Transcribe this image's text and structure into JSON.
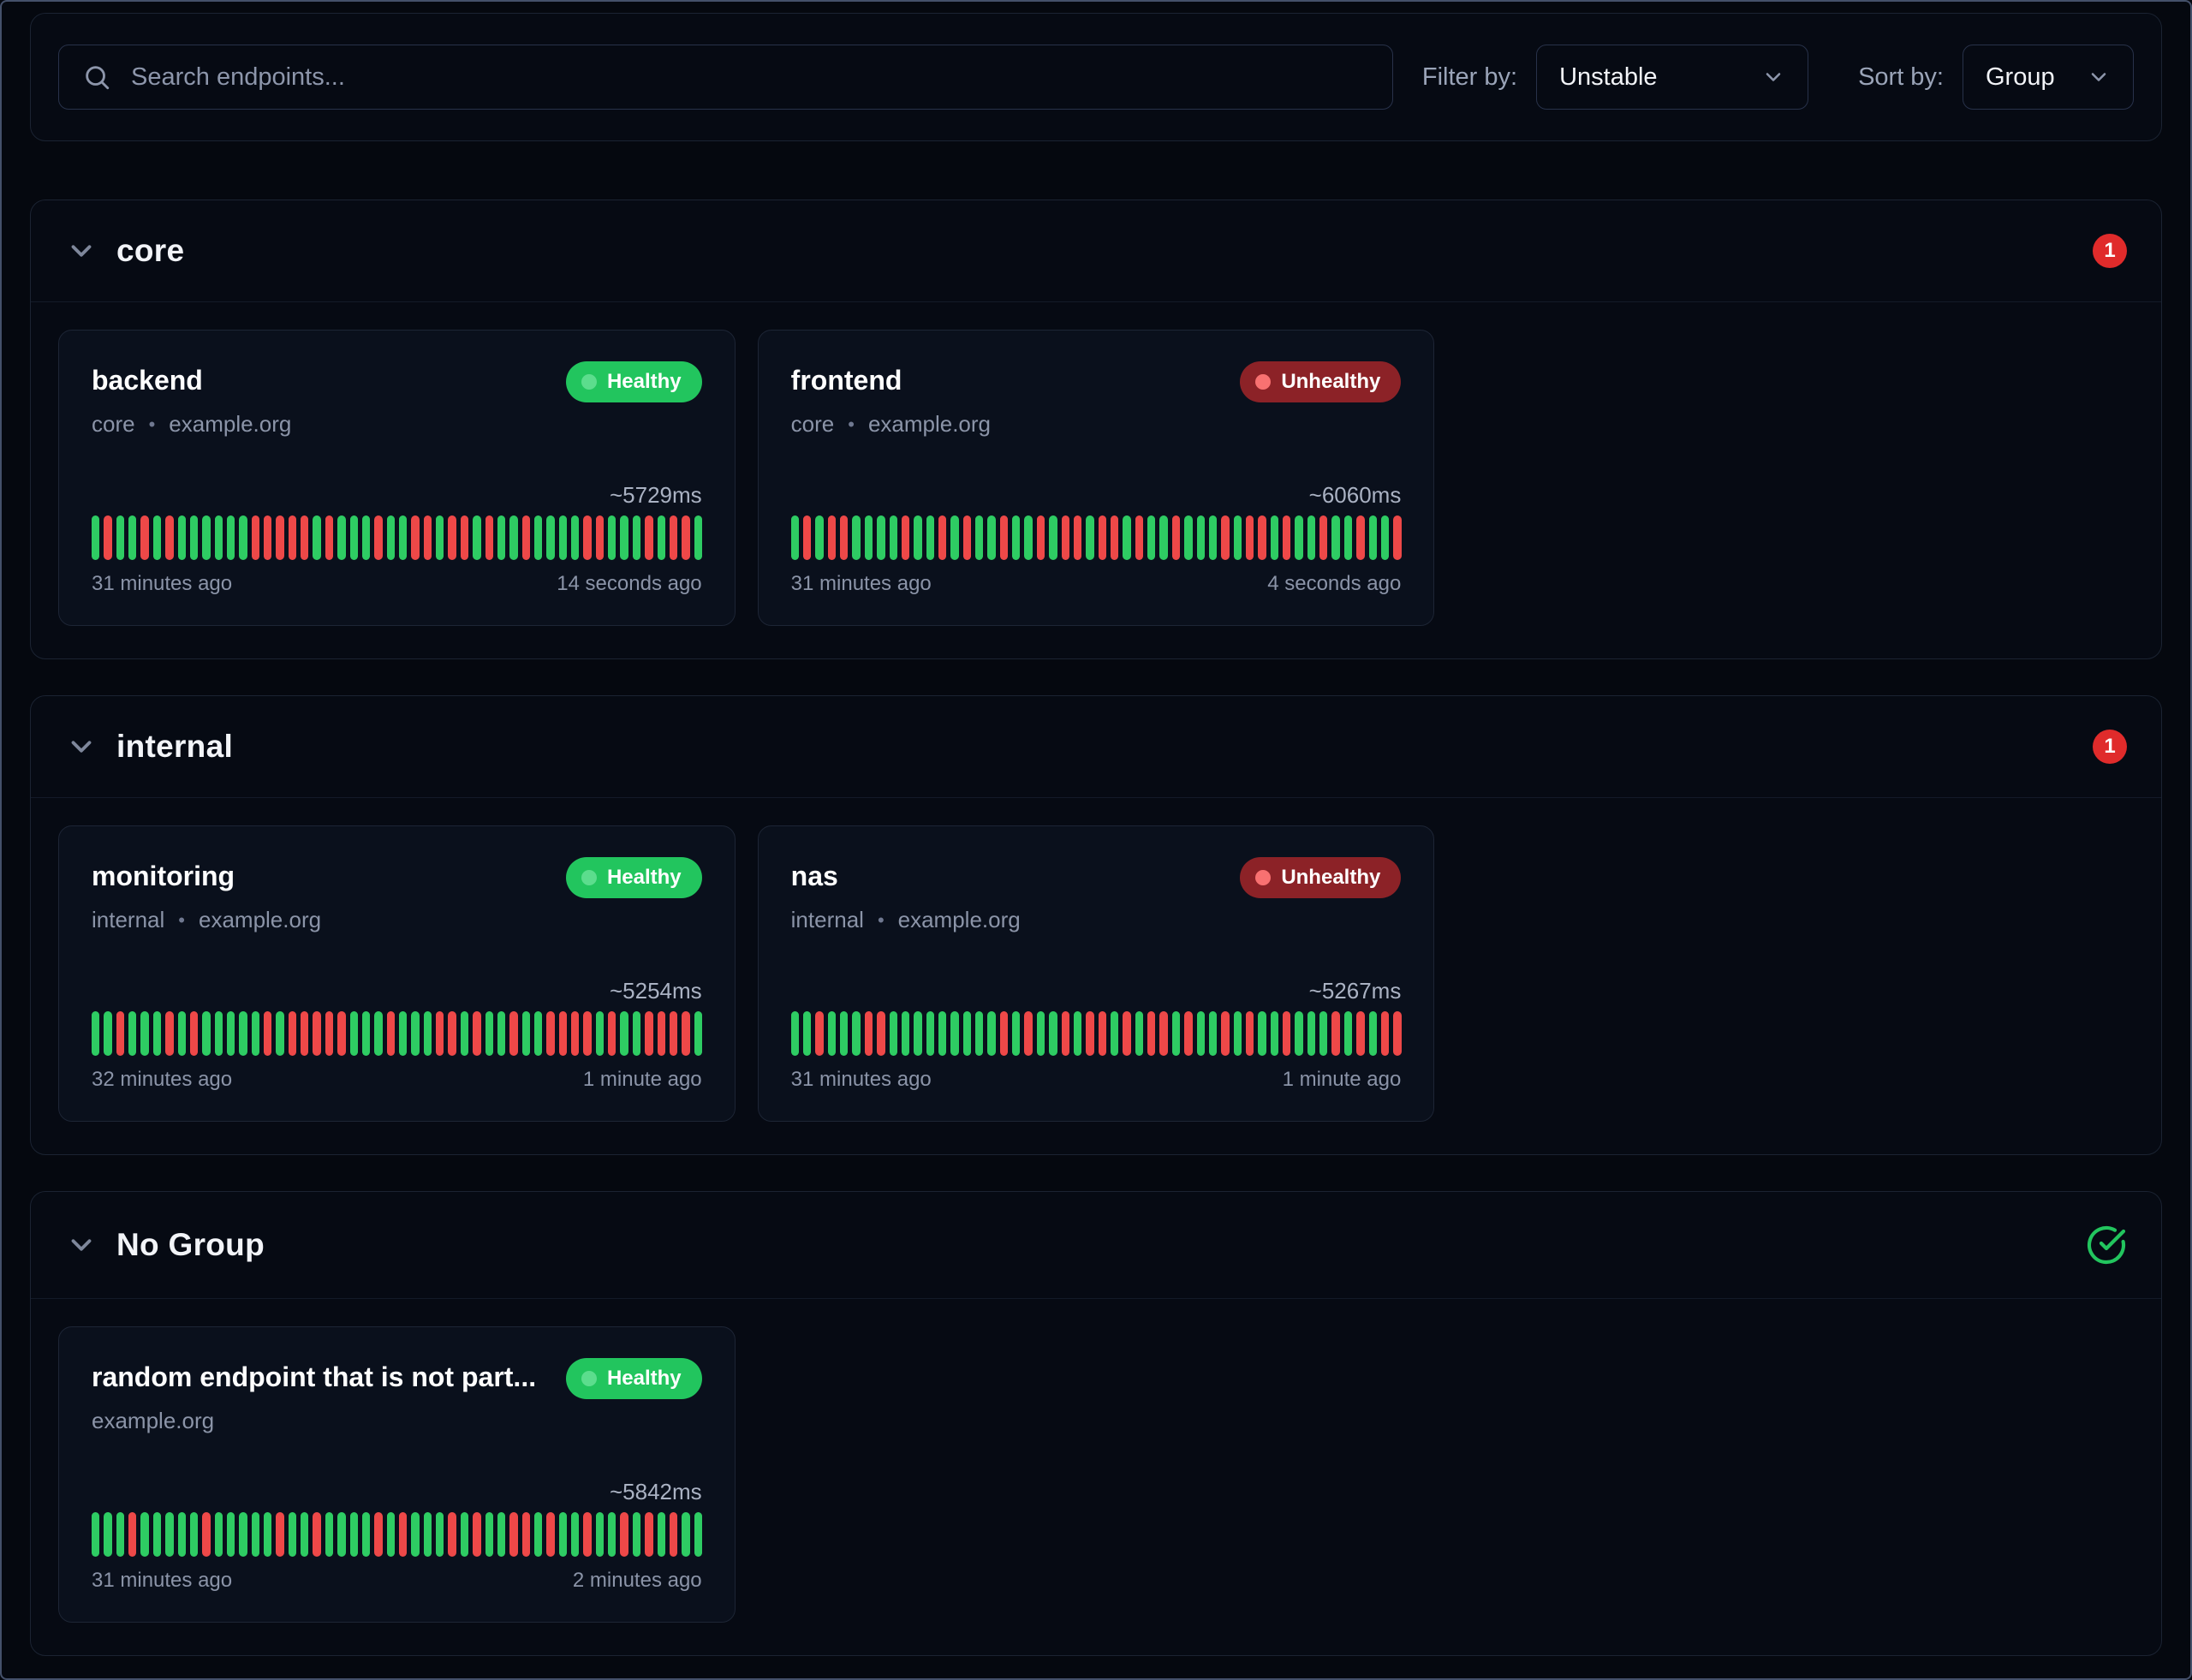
{
  "toolbar": {
    "search_placeholder": "Search endpoints...",
    "filter_label": "Filter by:",
    "filter_value": "Unstable",
    "sort_label": "Sort by:",
    "sort_value": "Group"
  },
  "colors": {
    "bar_healthy": "#2ecc63",
    "bar_unhealthy": "#ee4848",
    "badge_healthy": "#22c55e",
    "badge_healthy_dot": "#5cdd8d",
    "badge_unhealthy": "#8c2227",
    "badge_unhealthy_dot": "#f87171",
    "alert_count_badge": "#e02b2b",
    "check_icon": "#22c55e"
  },
  "groups": [
    {
      "name": "core",
      "badge": {
        "type": "alert-count",
        "value": "1"
      },
      "cards": [
        {
          "name": "backend",
          "status": "Healthy",
          "subtitle_parts": [
            "core",
            "example.org"
          ],
          "avg_response": "~5729ms",
          "oldest": "31 minutes ago",
          "newest": "14 seconds ago",
          "history": "GRGGRGRGGGGGGRRRRRGRGGGRGGRRGRRGRGGRGGGGRRGGGRGRRG"
        },
        {
          "name": "frontend",
          "status": "Unhealthy",
          "subtitle_parts": [
            "core",
            "example.org"
          ],
          "avg_response": "~6060ms",
          "oldest": "31 minutes ago",
          "newest": "4 seconds ago",
          "history": "GRGRRGGGGRGGRGRGGRGGRGRRGRRGRGGRGGGRGRRGRGGRGGRGGR"
        }
      ]
    },
    {
      "name": "internal",
      "badge": {
        "type": "alert-count",
        "value": "1"
      },
      "cards": [
        {
          "name": "monitoring",
          "status": "Healthy",
          "subtitle_parts": [
            "internal",
            "example.org"
          ],
          "avg_response": "~5254ms",
          "oldest": "32 minutes ago",
          "newest": "1 minute ago",
          "history": "GGRGGGRGRGGGGGRGRRRRRGGGRGGGRRGRGGRGGRRRRGRGGRRRRG"
        },
        {
          "name": "nas",
          "status": "Unhealthy",
          "subtitle_parts": [
            "internal",
            "example.org"
          ],
          "avg_response": "~5267ms",
          "oldest": "31 minutes ago",
          "newest": "1 minute ago",
          "history": "GGRGGGRRGGGGGGGGGRGRGGRGRRGRGRRGRGGRGRGGRGGGRGRGRR"
        }
      ]
    },
    {
      "name": "No Group",
      "badge": {
        "type": "check"
      },
      "cards": [
        {
          "name": "random endpoint that is not part...",
          "status": "Healthy",
          "subtitle_parts": [
            "example.org"
          ],
          "avg_response": "~5842ms",
          "oldest": "31 minutes ago",
          "newest": "2 minutes ago",
          "history": "GGGRGGGGGRGGGGGRGGRGGGGRGRGGGRGRGGRRGRGGRGGRGRGRGG"
        }
      ]
    }
  ]
}
